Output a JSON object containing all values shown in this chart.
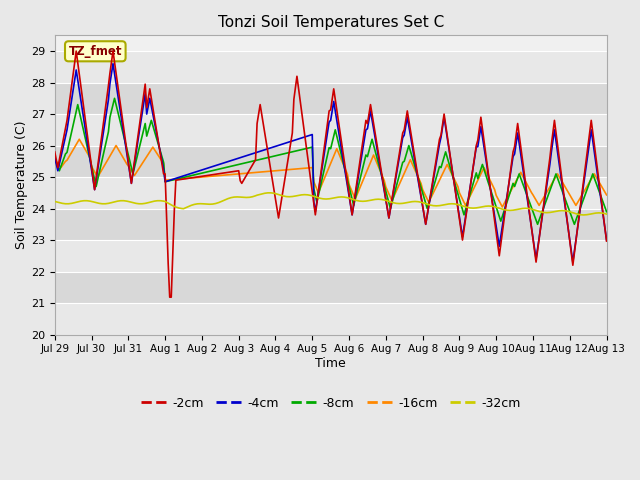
{
  "title": "Tonzi Soil Temperatures Set C",
  "xlabel": "Time",
  "ylabel": "Soil Temperature (C)",
  "ylim": [
    20.0,
    29.5
  ],
  "yticks": [
    20.0,
    21.0,
    22.0,
    23.0,
    24.0,
    25.0,
    26.0,
    27.0,
    28.0,
    29.0
  ],
  "annotation_label": "TZ_fmet",
  "series_colors": [
    "#cc0000",
    "#0000cc",
    "#00aa00",
    "#ff8800",
    "#cccc00"
  ],
  "series_labels": [
    "-2cm",
    "-4cm",
    "-8cm",
    "-16cm",
    "-32cm"
  ],
  "x_tick_labels": [
    "Jul 29",
    "Jul 30",
    "Jul 31",
    "Aug 1",
    "Aug 2",
    "Aug 3",
    "Aug 4",
    "Aug 5",
    "Aug 6",
    "Aug 7",
    "Aug 8",
    "Aug 9",
    "Aug 10",
    "Aug 11",
    "Aug 12",
    "Aug 13"
  ],
  "figsize": [
    6.4,
    4.8
  ],
  "dpi": 100
}
